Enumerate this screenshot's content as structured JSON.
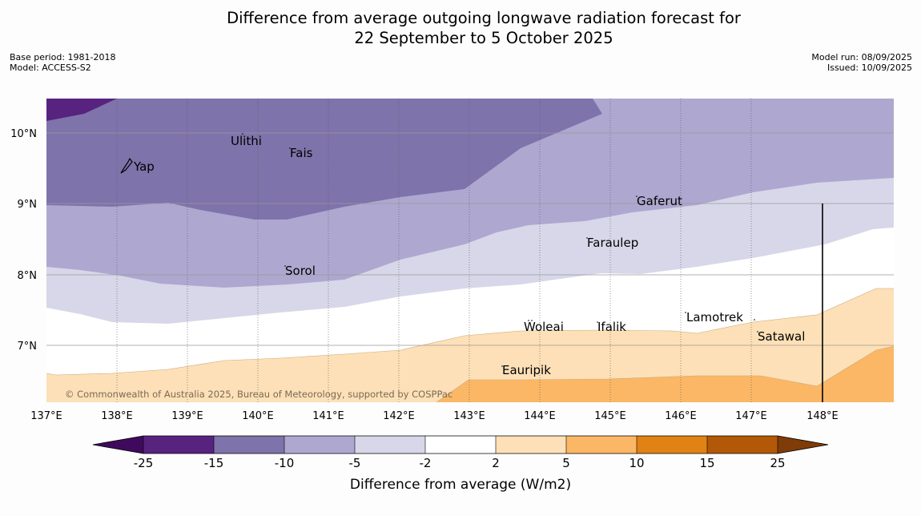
{
  "header": {
    "title_line1": "Difference from average outgoing longwave radiation forecast for",
    "title_line2": "22 September to 5 October 2025",
    "base_period": "Base period: 1981-2018",
    "model": "Model: ACCESS-S2",
    "model_run": "Model run: 08/09/2025",
    "issued": "Issued: 10/09/2025"
  },
  "map": {
    "lon_labels": [
      "137°E",
      "138°E",
      "139°E",
      "140°E",
      "141°E",
      "142°E",
      "143°E",
      "144°E",
      "145°E",
      "146°E",
      "147°E",
      "148°E"
    ],
    "lat_labels": [
      "10°N",
      "9°N",
      "8°N",
      "7°N"
    ],
    "places": [
      {
        "name": "Ulithi"
      },
      {
        "name": "Fais"
      },
      {
        "name": "Yap"
      },
      {
        "name": "Gaferut"
      },
      {
        "name": "Faraulep"
      },
      {
        "name": "Sorol"
      },
      {
        "name": "Lamotrek"
      },
      {
        "name": "Woleai"
      },
      {
        "name": "Ifalik"
      },
      {
        "name": "Satawal"
      },
      {
        "name": "Eauripik"
      }
    ],
    "copyright": "© Commonwealth of Australia 2025, Bureau of Meteorology, supported by COSPPac"
  },
  "colorbar": {
    "label": "Difference from average (W/m2)",
    "ticks": [
      "-25",
      "-15",
      "-10",
      "-5",
      "-2",
      "2",
      "5",
      "10",
      "15",
      "25"
    ],
    "colors": [
      "#3f0a5e",
      "#57237f",
      "#7f73ab",
      "#aea8d0",
      "#d7d7e9",
      "#ffffff",
      "#fde0b7",
      "#fbb765",
      "#e08214",
      "#b35806",
      "#7f3b08"
    ]
  }
}
